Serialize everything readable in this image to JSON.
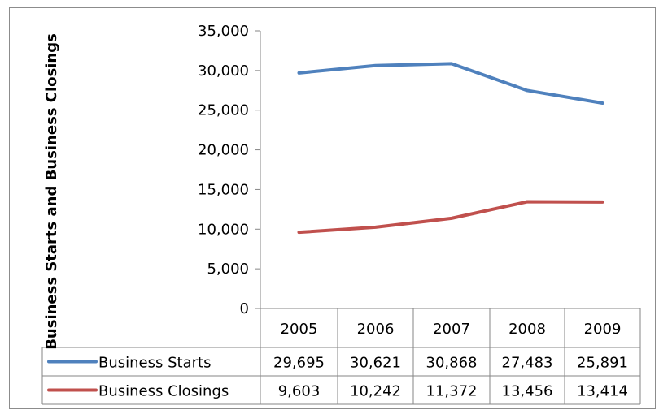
{
  "chart_data": {
    "type": "line",
    "title": "",
    "ylabel": "Business Starts and Business Closings",
    "xlabel": "",
    "categories": [
      "2005",
      "2006",
      "2007",
      "2008",
      "2009"
    ],
    "ylim": [
      0,
      35000
    ],
    "yticks": [
      0,
      5000,
      10000,
      15000,
      20000,
      25000,
      30000,
      35000
    ],
    "ytick_labels": [
      "0",
      "5,000",
      "10,000",
      "15,000",
      "20,000",
      "25,000",
      "30,000",
      "35,000"
    ],
    "grid": false,
    "legend": "data-table",
    "series": [
      {
        "name": "Business Starts",
        "color": "#4f81bd",
        "values": [
          29695,
          30621,
          30868,
          27483,
          25891
        ],
        "labels": [
          "29,695",
          "30,621",
          "30,868",
          "27,483",
          "25,891"
        ]
      },
      {
        "name": "Business Closings",
        "color": "#c0504d",
        "values": [
          9603,
          10242,
          11372,
          13456,
          13414
        ],
        "labels": [
          "9,603",
          "10,242",
          "11,372",
          "13,456",
          "13,414"
        ]
      }
    ]
  }
}
